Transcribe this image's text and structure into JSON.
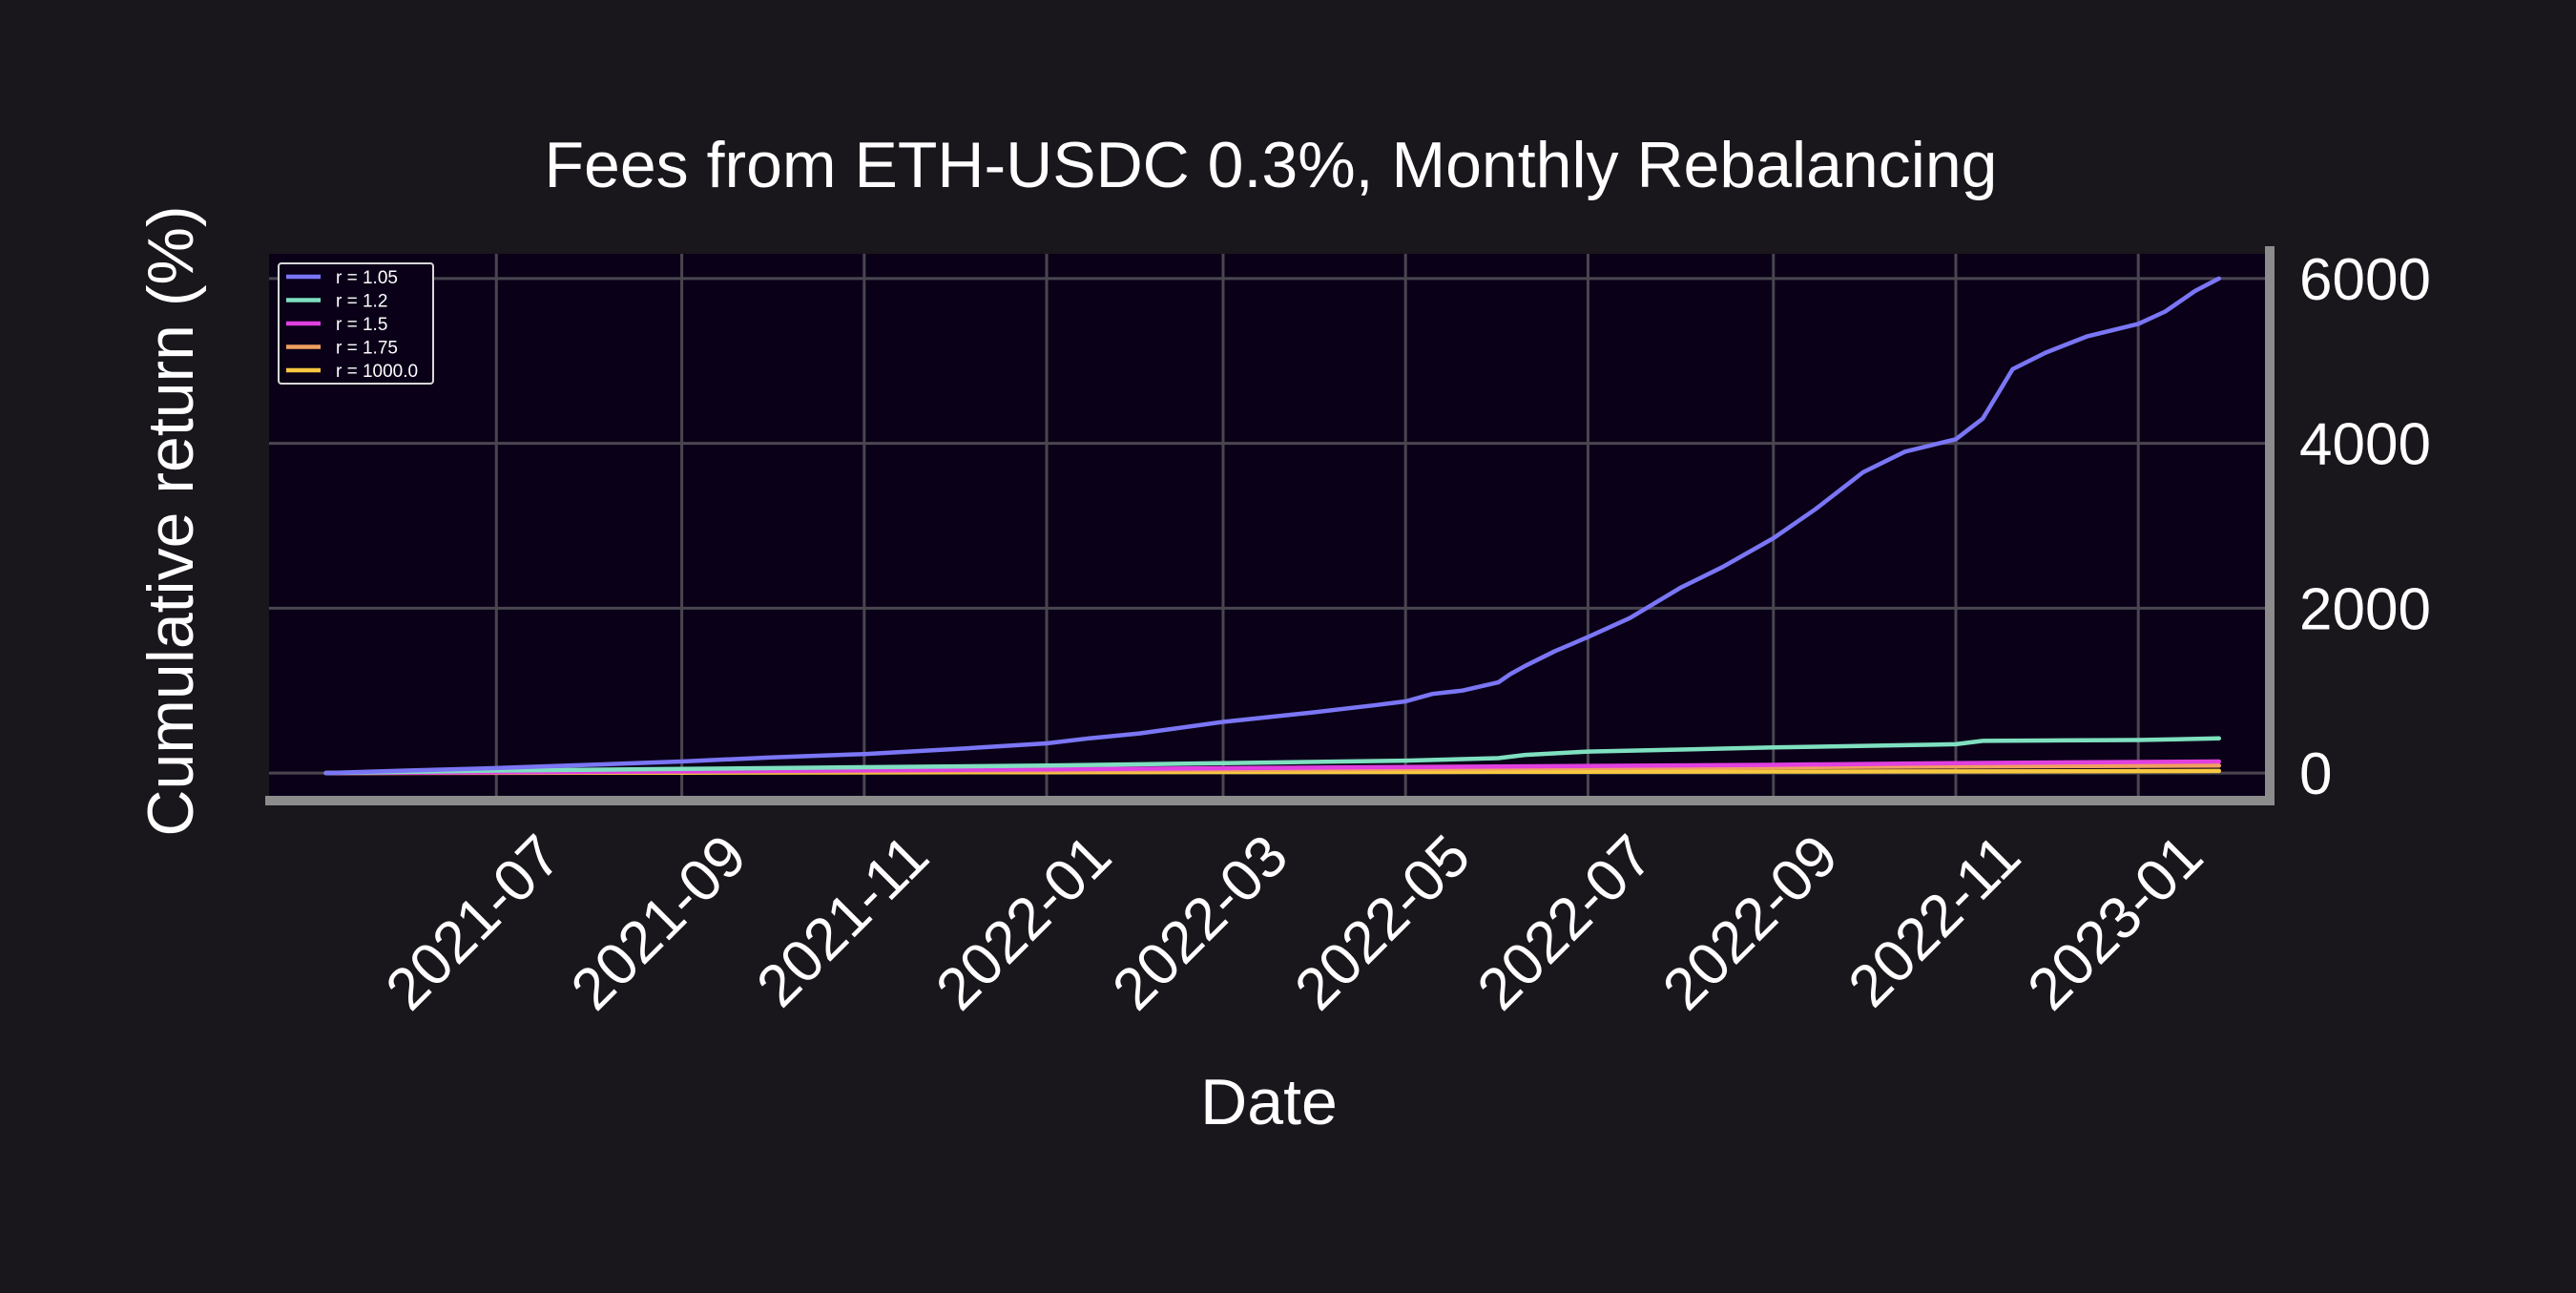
{
  "chart_data": {
    "type": "line",
    "title": "Fees from ETH-USDC 0.3%, Monthly Rebalancing",
    "xlabel": "Date",
    "ylabel": "Cumulative return (%)",
    "x_axis_type": "date",
    "xlim": [
      "2021-04-16",
      "2023-02-13"
    ],
    "ylim": [
      -300,
      6300
    ],
    "x_ticks": [
      "2021-07",
      "2021-09",
      "2021-11",
      "2022-01",
      "2022-03",
      "2022-05",
      "2022-07",
      "2022-09",
      "2022-11",
      "2023-01"
    ],
    "x_tick_dates": [
      "2021-07-01",
      "2021-09-01",
      "2021-11-01",
      "2022-01-01",
      "2022-03-01",
      "2022-05-01",
      "2022-07-01",
      "2022-09-01",
      "2022-11-01",
      "2023-01-01"
    ],
    "y_ticks": [
      0,
      2000,
      4000,
      6000
    ],
    "y_axis_side": "right",
    "grid": true,
    "legend_position": "top-left",
    "colors": {
      "figure_background": "#19171c",
      "plot_background": "#0a0118",
      "grid": "#4a4650",
      "spine": "#8c8c8c",
      "text": "#ffffff"
    },
    "series": [
      {
        "name": "r = 1.05",
        "color": "#7b76f5",
        "points": [
          [
            "2021-05-05",
            0
          ],
          [
            "2021-06-01",
            30
          ],
          [
            "2021-07-01",
            60
          ],
          [
            "2021-08-01",
            100
          ],
          [
            "2021-09-01",
            140
          ],
          [
            "2021-10-01",
            190
          ],
          [
            "2021-11-01",
            230
          ],
          [
            "2021-12-01",
            290
          ],
          [
            "2022-01-01",
            360
          ],
          [
            "2022-01-15",
            420
          ],
          [
            "2022-02-01",
            480
          ],
          [
            "2022-03-01",
            620
          ],
          [
            "2022-04-01",
            740
          ],
          [
            "2022-04-20",
            820
          ],
          [
            "2022-05-01",
            870
          ],
          [
            "2022-05-10",
            960
          ],
          [
            "2022-05-20",
            1000
          ],
          [
            "2022-06-01",
            1100
          ],
          [
            "2022-06-05",
            1200
          ],
          [
            "2022-06-10",
            1300
          ],
          [
            "2022-06-20",
            1480
          ],
          [
            "2022-07-01",
            1650
          ],
          [
            "2022-07-15",
            1880
          ],
          [
            "2022-08-01",
            2250
          ],
          [
            "2022-08-15",
            2500
          ],
          [
            "2022-09-01",
            2850
          ],
          [
            "2022-09-15",
            3200
          ],
          [
            "2022-10-01",
            3650
          ],
          [
            "2022-10-15",
            3900
          ],
          [
            "2022-11-01",
            4050
          ],
          [
            "2022-11-10",
            4300
          ],
          [
            "2022-11-15",
            4600
          ],
          [
            "2022-11-20",
            4900
          ],
          [
            "2022-12-01",
            5100
          ],
          [
            "2022-12-15",
            5300
          ],
          [
            "2023-01-01",
            5450
          ],
          [
            "2023-01-10",
            5600
          ],
          [
            "2023-01-20",
            5850
          ],
          [
            "2023-01-28",
            6000
          ]
        ]
      },
      {
        "name": "r = 1.2",
        "color": "#7fe0c0",
        "points": [
          [
            "2021-05-05",
            0
          ],
          [
            "2021-07-01",
            30
          ],
          [
            "2021-09-01",
            50
          ],
          [
            "2021-11-01",
            70
          ],
          [
            "2022-01-01",
            90
          ],
          [
            "2022-03-01",
            120
          ],
          [
            "2022-05-01",
            150
          ],
          [
            "2022-06-01",
            180
          ],
          [
            "2022-06-10",
            220
          ],
          [
            "2022-07-01",
            260
          ],
          [
            "2022-09-01",
            310
          ],
          [
            "2022-11-01",
            350
          ],
          [
            "2022-11-10",
            390
          ],
          [
            "2022-12-01",
            395
          ],
          [
            "2023-01-01",
            400
          ],
          [
            "2023-01-28",
            420
          ]
        ]
      },
      {
        "name": "r = 1.5",
        "color": "#e040e0",
        "points": [
          [
            "2021-05-05",
            0
          ],
          [
            "2021-09-01",
            20
          ],
          [
            "2022-01-01",
            45
          ],
          [
            "2022-06-01",
            80
          ],
          [
            "2022-09-01",
            100
          ],
          [
            "2022-11-01",
            120
          ],
          [
            "2023-01-28",
            140
          ]
        ]
      },
      {
        "name": "r = 1.75",
        "color": "#f0a060",
        "points": [
          [
            "2021-05-05",
            0
          ],
          [
            "2021-09-01",
            15
          ],
          [
            "2022-01-01",
            30
          ],
          [
            "2022-06-01",
            55
          ],
          [
            "2022-09-01",
            70
          ],
          [
            "2022-11-01",
            80
          ],
          [
            "2023-01-28",
            90
          ]
        ]
      },
      {
        "name": "r = 1000.0",
        "color": "#f8c840",
        "points": [
          [
            "2021-05-05",
            0
          ],
          [
            "2021-09-01",
            5
          ],
          [
            "2022-01-01",
            10
          ],
          [
            "2022-06-01",
            15
          ],
          [
            "2022-09-01",
            18
          ],
          [
            "2022-11-01",
            20
          ],
          [
            "2023-01-28",
            25
          ]
        ]
      }
    ]
  }
}
